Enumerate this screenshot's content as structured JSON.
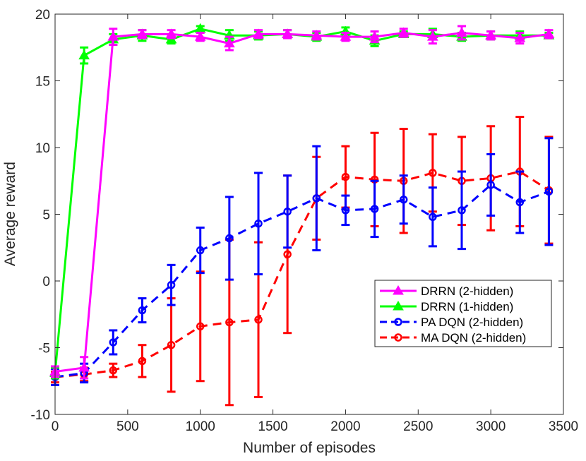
{
  "chart_data": {
    "type": "line",
    "title": "",
    "xlabel": "Number of episodes",
    "ylabel": "Average reward",
    "xlim": [
      0,
      3500
    ],
    "ylim": [
      -10,
      20
    ],
    "x_ticks": [
      0,
      500,
      1000,
      1500,
      2000,
      2500,
      3000,
      3500
    ],
    "y_ticks": [
      -10,
      -5,
      0,
      5,
      10,
      15,
      20
    ],
    "grid": false,
    "legend_position": "center-right",
    "series": [
      {
        "name": "DRRN (2-hidden)",
        "color": "#ff00ff",
        "dash": "solid",
        "marker": "triangle",
        "x": [
          0,
          200,
          400,
          600,
          800,
          1000,
          1200,
          1400,
          1600,
          1800,
          2000,
          2200,
          2400,
          2600,
          2800,
          3000,
          3200,
          3400
        ],
        "y": [
          -6.8,
          -6.5,
          18.3,
          18.5,
          18.5,
          18.3,
          17.8,
          18.5,
          18.5,
          18.4,
          18.3,
          18.3,
          18.6,
          18.3,
          18.6,
          18.4,
          18.2,
          18.5
        ],
        "err": [
          0.4,
          0.8,
          0.6,
          0.3,
          0.3,
          0.3,
          0.5,
          0.3,
          0.3,
          0.3,
          0.3,
          0.4,
          0.3,
          0.5,
          0.5,
          0.3,
          0.4,
          0.3
        ]
      },
      {
        "name": "DRRN (1-hidden)",
        "color": "#00ff00",
        "dash": "solid",
        "marker": "triangle",
        "x": [
          0,
          200,
          400,
          600,
          800,
          1000,
          1200,
          1400,
          1600,
          1800,
          2000,
          2200,
          2400,
          2600,
          2800,
          3000,
          3200,
          3400
        ],
        "y": [
          -6.9,
          16.9,
          18.1,
          18.4,
          18.1,
          18.9,
          18.4,
          18.4,
          18.5,
          18.3,
          18.7,
          18.0,
          18.5,
          18.5,
          18.3,
          18.4,
          18.4,
          18.4
        ],
        "err": [
          0.4,
          0.6,
          0.4,
          0.4,
          0.3,
          0.2,
          0.4,
          0.3,
          0.3,
          0.3,
          0.3,
          0.4,
          0.2,
          0.4,
          0.3,
          0.3,
          0.3,
          0.2
        ]
      },
      {
        "name": "PA DQN (2-hidden)",
        "color": "#0000ff",
        "dash": "dashed",
        "marker": "circle",
        "x": [
          0,
          200,
          400,
          600,
          800,
          1000,
          1200,
          1400,
          1600,
          1800,
          2000,
          2200,
          2400,
          2600,
          2800,
          3000,
          3200,
          3400
        ],
        "y": [
          -7.2,
          -6.9,
          -4.6,
          -2.2,
          -0.3,
          2.3,
          3.2,
          4.3,
          5.2,
          6.2,
          5.3,
          5.4,
          6.1,
          4.8,
          5.3,
          7.2,
          5.9,
          6.7
        ],
        "err": [
          0.6,
          0.7,
          0.9,
          0.9,
          1.5,
          1.7,
          3.1,
          3.8,
          2.7,
          3.9,
          1.1,
          2.1,
          1.8,
          2.2,
          2.9,
          2.3,
          2.3,
          4.0
        ]
      },
      {
        "name": "MA DQN (2-hidden)",
        "color": "#ff0000",
        "dash": "dashed",
        "marker": "circle",
        "x": [
          0,
          200,
          400,
          600,
          800,
          1000,
          1200,
          1400,
          1600,
          1800,
          2000,
          2200,
          2400,
          2600,
          2800,
          3000,
          3200,
          3400
        ],
        "y": [
          -7.2,
          -7.0,
          -6.7,
          -6.0,
          -4.8,
          -3.4,
          -3.1,
          -2.9,
          2.0,
          6.2,
          7.8,
          7.6,
          7.5,
          8.1,
          7.5,
          7.7,
          8.2,
          6.8
        ],
        "err": [
          0.4,
          0.5,
          0.5,
          1.2,
          3.5,
          4.1,
          6.2,
          5.8,
          5.9,
          3.1,
          2.3,
          3.5,
          3.9,
          2.9,
          3.3,
          3.9,
          4.1,
          4.0
        ]
      }
    ]
  }
}
